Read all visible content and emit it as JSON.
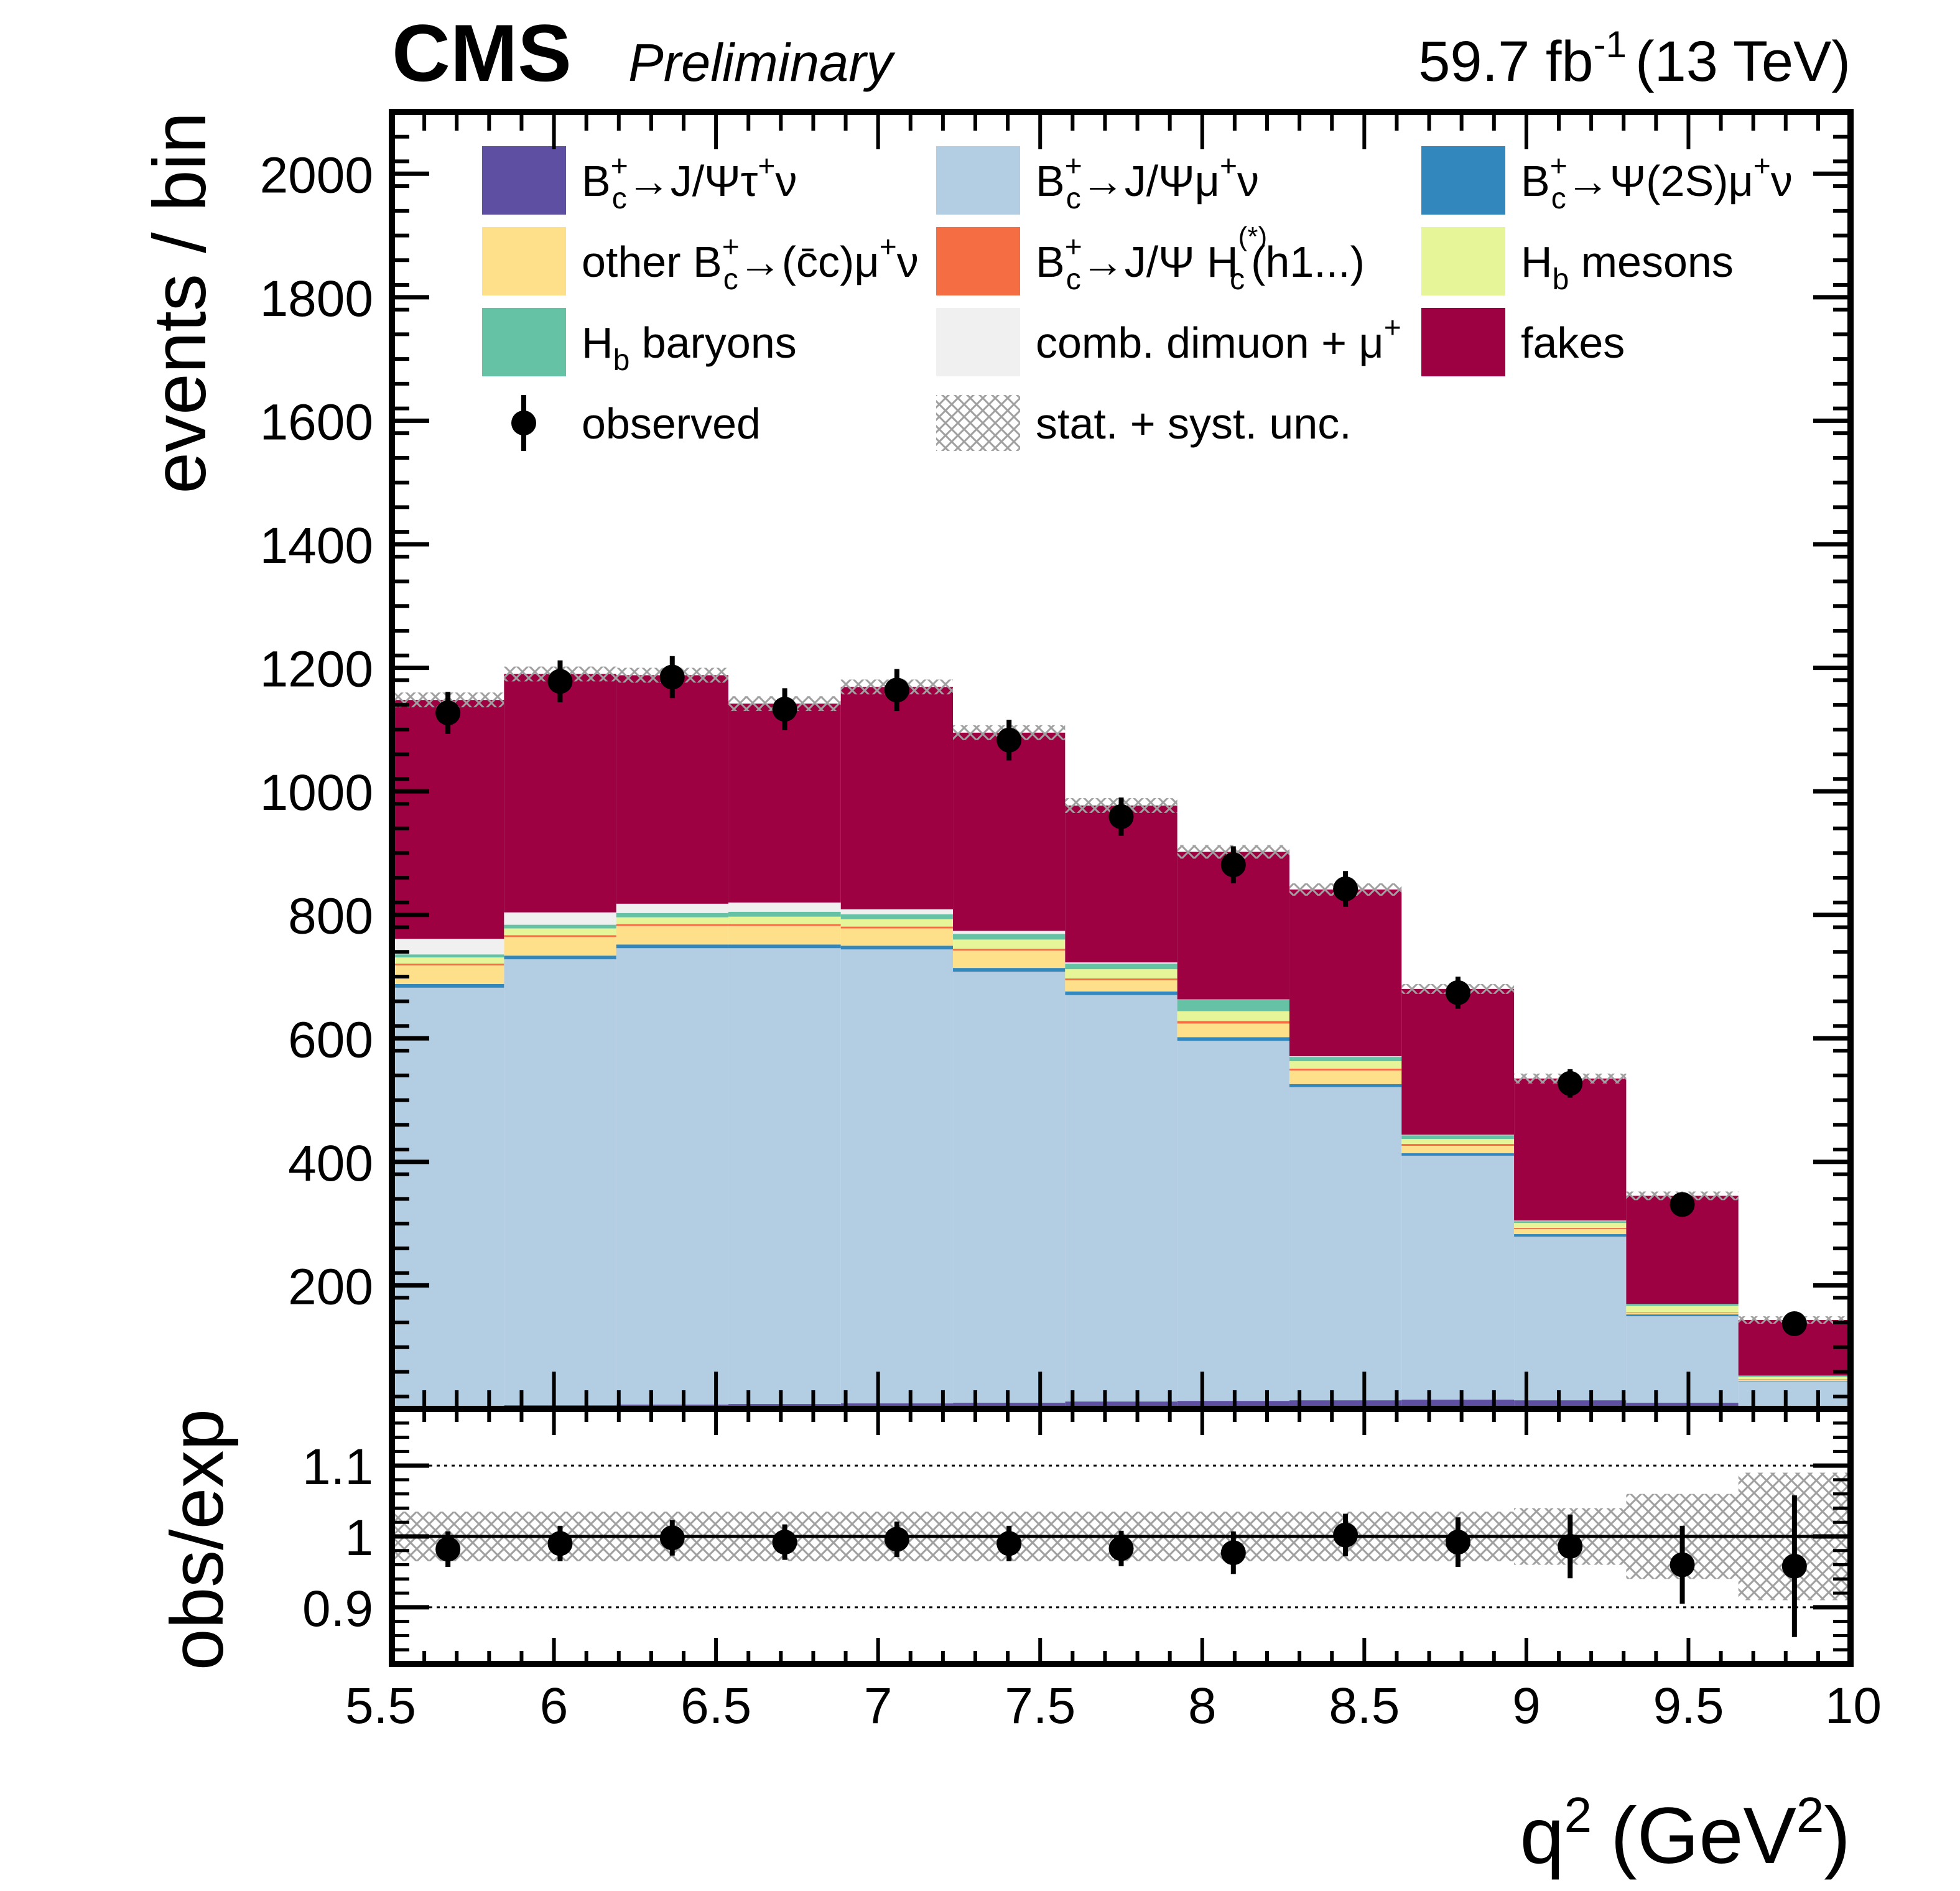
{
  "header": {
    "experiment": "CMS",
    "status": "Preliminary",
    "lumi": "59.7 fb",
    "lumi_exp": "-1",
    "energy": "(13 TeV)"
  },
  "chart_data": {
    "type": "stacked-histogram-with-ratio",
    "xlabel": "q",
    "xlabel_sup": "2",
    "xlabel_unit_open": "(GeV",
    "xlabel_unit_sup": "2",
    "xlabel_unit_close": ")",
    "ylabel": "events / bin",
    "ratio_ylabel": "obs/exp",
    "xlim": [
      5.5,
      10
    ],
    "ylim": [
      0,
      2100
    ],
    "ratio_ylim": [
      0.82,
      1.18
    ],
    "bin_edges": [
      5.5,
      5.846,
      6.192,
      6.538,
      6.885,
      7.231,
      7.577,
      7.923,
      8.269,
      8.615,
      8.962,
      9.308,
      9.654,
      10.0
    ],
    "x_ticks": [
      "5.5",
      "6",
      "6.5",
      "7",
      "7.5",
      "8",
      "8.5",
      "9",
      "9.5",
      "10"
    ],
    "x_tick_values": [
      5.5,
      6,
      6.5,
      7,
      7.5,
      8,
      8.5,
      9,
      9.5,
      10
    ],
    "y_ticks": [
      200,
      400,
      600,
      800,
      1000,
      1200,
      1400,
      1600,
      1800,
      2000
    ],
    "ratio_ticks": [
      "0.9",
      "1",
      "1.1"
    ],
    "ratio_tick_values": [
      0.9,
      1.0,
      1.1
    ],
    "legend_position": "top",
    "series": [
      {
        "name": "B_c^+ → J/Ψ τ^+ ν",
        "color": "#5e4fa2",
        "values": [
          5,
          6,
          7,
          8,
          9,
          10,
          12,
          13,
          14,
          15,
          14,
          10,
          4
        ]
      },
      {
        "name": "B_c^+ → J/Ψ μ^+ ν",
        "color": "#b3cde3",
        "values": [
          677,
          722,
          739,
          738,
          735,
          698,
          658,
          583,
          507,
          395,
          265,
          140,
          40
        ]
      },
      {
        "name": "B_c^+ → Ψ(2S) μ^+ ν",
        "color": "#3288bd",
        "values": [
          6,
          6,
          6,
          6,
          6,
          6,
          6,
          6,
          5,
          4,
          4,
          3,
          1
        ]
      },
      {
        "name": "other B_c^+ → (c̄c) μ^+ ν",
        "color": "#fee08b",
        "values": [
          30,
          30,
          30,
          30,
          28,
          28,
          18,
          22,
          22,
          12,
          8,
          3,
          2
        ]
      },
      {
        "name": "B_c^+ → J/Ψ H_c^(*)(h1...)",
        "color": "#f46d43",
        "values": [
          3,
          3,
          3,
          3,
          3,
          3,
          3,
          4,
          3,
          3,
          2,
          1,
          1
        ]
      },
      {
        "name": "H_b mesons",
        "color": "#e6f598",
        "values": [
          10,
          11,
          11,
          12,
          12,
          15,
          15,
          16,
          12,
          8,
          8,
          10,
          4
        ]
      },
      {
        "name": "H_b baryons",
        "color": "#66c2a5",
        "values": [
          5,
          6,
          7,
          8,
          8,
          9,
          9,
          18,
          7,
          6,
          3,
          3,
          2
        ]
      },
      {
        "name": "comb. dimuon + μ^+",
        "color": "#f0f0f0",
        "values": [
          25,
          20,
          15,
          15,
          8,
          5,
          2,
          1,
          1,
          1,
          1,
          0,
          0
        ]
      },
      {
        "name": "fakes",
        "color": "#9e0142",
        "values": [
          387,
          386,
          370,
          322,
          360,
          321,
          254,
          239,
          270,
          236,
          230,
          175,
          90
        ]
      }
    ],
    "total_expected": [
      1148,
      1190,
      1188,
      1142,
      1169,
      1095,
      977,
      902,
      841,
      680,
      535,
      345,
      144
    ],
    "total_uncertainty": [
      12,
      12,
      12,
      12,
      12,
      12,
      12,
      11,
      10,
      8,
      8,
      7,
      6
    ],
    "observed": {
      "name": "observed",
      "x": [
        5.673,
        6.019,
        6.365,
        6.712,
        7.058,
        7.404,
        7.75,
        8.096,
        8.442,
        8.789,
        9.135,
        9.481,
        9.827
      ],
      "values": [
        1127,
        1178,
        1185,
        1133,
        1164,
        1083,
        959,
        881,
        842,
        674,
        527,
        331,
        138
      ],
      "errors": [
        34,
        34,
        34,
        34,
        34,
        33,
        31,
        30,
        29,
        26,
        23,
        18,
        12
      ]
    },
    "ratio": {
      "values": [
        0.982,
        0.99,
        0.998,
        0.992,
        0.996,
        0.99,
        0.983,
        0.977,
        1.002,
        0.992,
        0.986,
        0.96,
        0.958
      ],
      "errors": [
        0.025,
        0.025,
        0.025,
        0.025,
        0.025,
        0.025,
        0.025,
        0.03,
        0.03,
        0.035,
        0.045,
        0.055,
        0.1
      ],
      "unc_band": [
        0.035,
        0.035,
        0.035,
        0.035,
        0.035,
        0.035,
        0.035,
        0.035,
        0.035,
        0.035,
        0.04,
        0.06,
        0.09
      ]
    },
    "legend_entries": [
      {
        "label": "B",
        "sub": "c",
        "sup": "+",
        "rest": "→J/Ψτ",
        "rest_sup": "+",
        "tail": "ν",
        "color": "#5e4fa2",
        "kind": "box"
      },
      {
        "label": "B",
        "sub": "c",
        "sup": "+",
        "rest": "→J/Ψμ",
        "rest_sup": "+",
        "tail": "ν",
        "color": "#b3cde3",
        "kind": "box"
      },
      {
        "label": "B",
        "sub": "c",
        "sup": "+",
        "rest": "→Ψ(2S)μ",
        "rest_sup": "+",
        "tail": "ν",
        "color": "#3288bd",
        "kind": "box"
      },
      {
        "label": "other B",
        "sub": "c",
        "sup": "+",
        "rest": "→(c̄c)μ",
        "rest_sup": "+",
        "tail": "ν",
        "color": "#fee08b",
        "kind": "box"
      },
      {
        "label": "B",
        "sub": "c",
        "sup": "+",
        "rest": "→J/Ψ H",
        "rest_sup": "(*)",
        "rest_sub": "c",
        "tail": "(h1...)",
        "color": "#f46d43",
        "kind": "box"
      },
      {
        "label": "H",
        "sub": "b",
        "sup": "",
        "rest": " mesons",
        "rest_sup": "",
        "tail": "",
        "color": "#e6f598",
        "kind": "box"
      },
      {
        "label": "H",
        "sub": "b",
        "sup": "",
        "rest": " baryons",
        "rest_sup": "",
        "tail": "",
        "color": "#66c2a5",
        "kind": "box"
      },
      {
        "label": "comb. dimuon + μ",
        "sub": "",
        "sup": "+",
        "rest": "",
        "rest_sup": "",
        "tail": "",
        "color": "#f0f0f0",
        "kind": "box"
      },
      {
        "label": "fakes",
        "sub": "",
        "sup": "",
        "rest": "",
        "rest_sup": "",
        "tail": "",
        "color": "#9e0142",
        "kind": "box"
      },
      {
        "label": "observed",
        "sub": "",
        "sup": "",
        "rest": "",
        "rest_sup": "",
        "tail": "",
        "color": "#000000",
        "kind": "marker"
      },
      {
        "label": "stat. + syst. unc.",
        "sub": "",
        "sup": "",
        "rest": "",
        "rest_sup": "",
        "tail": "",
        "color": "#999999",
        "kind": "hatch"
      }
    ]
  }
}
